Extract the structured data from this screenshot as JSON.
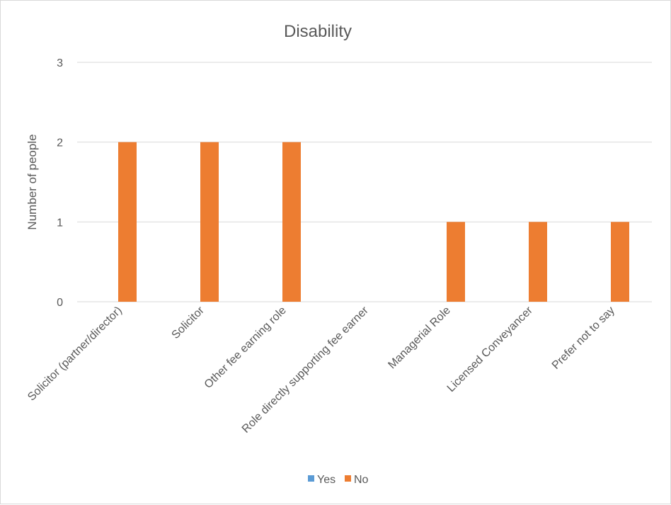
{
  "chart_data": {
    "type": "bar",
    "title": "Disability",
    "xlabel": "",
    "ylabel": "Number of people",
    "categories": [
      "Solicitor (partner/director)",
      "Solicitor",
      "Other fee earning role",
      "Role directly supporting fee earner",
      "Managerial Role",
      "Licensed Conveyancer",
      "Prefer not to say"
    ],
    "series": [
      {
        "name": "Yes",
        "color": "#5b9bd5",
        "values": [
          0,
          0,
          0,
          0,
          0,
          0,
          0
        ]
      },
      {
        "name": "No",
        "color": "#ed7d31",
        "values": [
          2,
          2,
          2,
          0,
          1,
          1,
          1
        ]
      }
    ],
    "ylim": [
      0,
      3
    ],
    "yticks": [
      0,
      1,
      2,
      3
    ],
    "grid": true,
    "legend_position": "bottom"
  }
}
